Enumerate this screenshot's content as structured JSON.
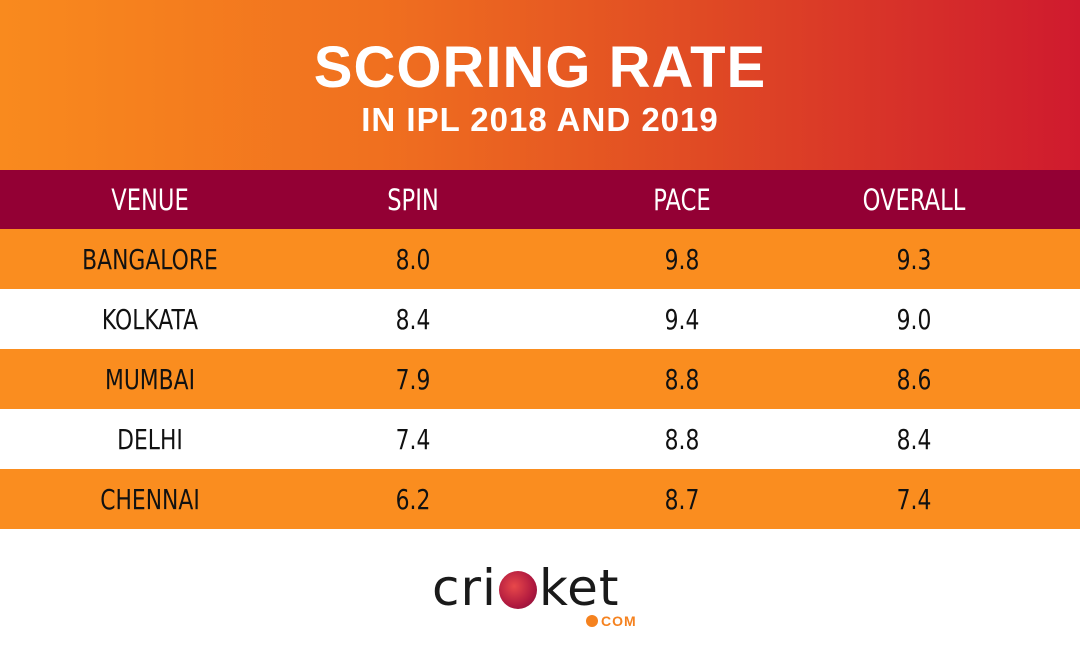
{
  "header": {
    "title": "SCORING RATE",
    "subtitle": "IN IPL 2018 AND 2019"
  },
  "chart_data": {
    "type": "table",
    "title": "SCORING RATE",
    "subtitle": "IN IPL 2018 AND 2019",
    "columns": [
      "VENUE",
      "SPIN",
      "PACE",
      "OVERALL"
    ],
    "rows": [
      [
        "BANGALORE",
        "8.0",
        "9.8",
        "9.3"
      ],
      [
        "KOLKATA",
        "8.4",
        "9.4",
        "9.0"
      ],
      [
        "MUMBAI",
        "7.9",
        "8.8",
        "8.6"
      ],
      [
        "DELHI",
        "7.4",
        "8.8",
        "8.4"
      ],
      [
        "CHENNAI",
        "6.2",
        "8.7",
        "7.4"
      ]
    ]
  },
  "logo": {
    "part1": "cr",
    "part2": "i",
    "part3": "ket",
    "suffix": "COM"
  },
  "colors": {
    "header_gradient_start": "#f98a1e",
    "header_gradient_end": "#cf1a2e",
    "table_header_bg": "#930034",
    "row_orange": "#fa8d1f",
    "row_white": "#ffffff"
  }
}
